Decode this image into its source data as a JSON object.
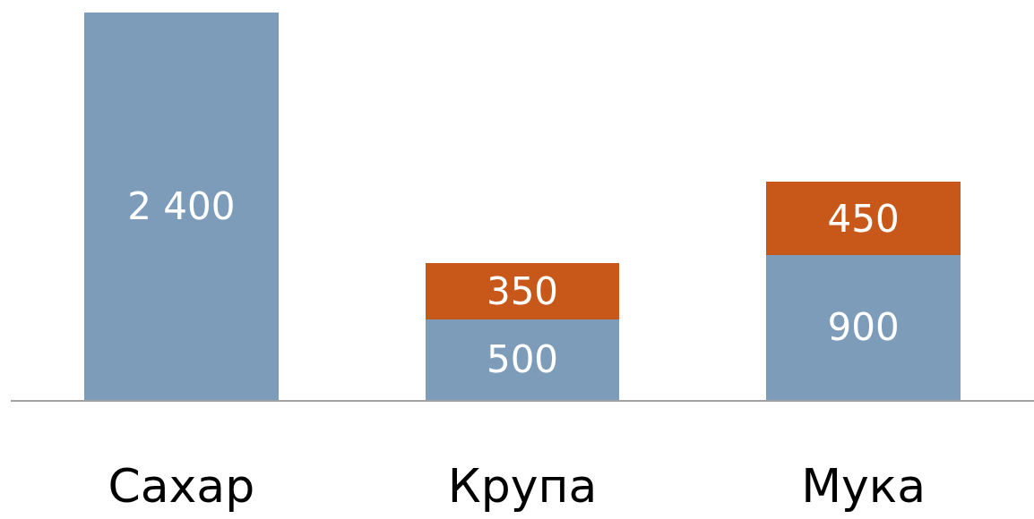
{
  "chart_data": {
    "type": "bar",
    "stacked": true,
    "categories": [
      "Сахар",
      "Крупа",
      "Мука"
    ],
    "ylim": [
      0,
      2400
    ],
    "tick_labels": "x",
    "series": [
      {
        "color": "#7d9cba",
        "values": [
          2400,
          500,
          900
        ],
        "value_labels": [
          "2 400",
          "500",
          "900"
        ]
      },
      {
        "color": "#c8581a",
        "values": [
          null,
          350,
          450
        ],
        "value_labels": [
          null,
          "350",
          "450"
        ]
      }
    ]
  }
}
